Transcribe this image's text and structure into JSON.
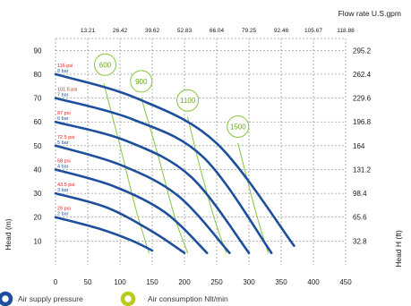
{
  "chart_data": {
    "type": "line",
    "title": "",
    "x_top_title": "Flow rate U.S.gpm",
    "y_left_title": "Head (m)",
    "y_right_title": "Head H (ft)",
    "x_ticks": [
      "0",
      "50",
      "100",
      "150",
      "200",
      "250",
      "300",
      "350",
      "400",
      "450"
    ],
    "x_top_ticks": [
      "13.21",
      "26.42",
      "39.62",
      "52.83",
      "66.04",
      "79.25",
      "92.46",
      "105.67",
      "118.88"
    ],
    "y_ticks": [
      "10",
      "20",
      "30",
      "40",
      "50",
      "60",
      "70",
      "80",
      "90"
    ],
    "y_right_ticks": [
      "32.8",
      "65.6",
      "98.4",
      "131.2",
      "164",
      "196.8",
      "229.6",
      "262.4",
      "295.2"
    ],
    "xlim": [
      0,
      450
    ],
    "ylim": [
      0,
      95
    ],
    "pressure_colors": {
      "curve": "#1e4f9c",
      "air": "#88c541",
      "psi": "#e0201b",
      "bar": "#2456a6"
    },
    "pressure_series": [
      {
        "psi": "29 psi",
        "bar": "2 bar",
        "points": [
          [
            0,
            20
          ],
          [
            70,
            15
          ],
          [
            120,
            10
          ],
          [
            150,
            6
          ]
        ]
      },
      {
        "psi": "43.5 psi",
        "bar": "3 bar",
        "points": [
          [
            0,
            30
          ],
          [
            80,
            24
          ],
          [
            150,
            14
          ],
          [
            200,
            5
          ]
        ]
      },
      {
        "psi": "58 psi",
        "bar": "4 bar",
        "points": [
          [
            0,
            40
          ],
          [
            90,
            33
          ],
          [
            170,
            22
          ],
          [
            235,
            5
          ]
        ]
      },
      {
        "psi": "72.5 psi",
        "bar": "5 bar",
        "points": [
          [
            0,
            50
          ],
          [
            100,
            42
          ],
          [
            190,
            29
          ],
          [
            270,
            5
          ]
        ]
      },
      {
        "psi": "87 psi",
        "bar": "6 bar",
        "points": [
          [
            0,
            60
          ],
          [
            110,
            52
          ],
          [
            210,
            37
          ],
          [
            300,
            5
          ]
        ]
      },
      {
        "psi": "101.5 psi",
        "bar": "7 bar",
        "points": [
          [
            0,
            70
          ],
          [
            120,
            61
          ],
          [
            230,
            45
          ],
          [
            335,
            5
          ]
        ]
      },
      {
        "psi": "116 psi",
        "bar": "8 bar",
        "points": [
          [
            0,
            80
          ],
          [
            125,
            70
          ],
          [
            250,
            51
          ],
          [
            370,
            8
          ]
        ]
      }
    ],
    "air_series": [
      {
        "label": "600",
        "bubble": [
          77,
          84
        ],
        "points": [
          [
            75,
            76
          ],
          [
            100,
            50
          ],
          [
            125,
            23
          ],
          [
            145,
            5
          ]
        ]
      },
      {
        "label": "900",
        "bubble": [
          133,
          77
        ],
        "points": [
          [
            133,
            70
          ],
          [
            160,
            45
          ],
          [
            185,
            20
          ],
          [
            205,
            5
          ]
        ]
      },
      {
        "label": "1100",
        "bubble": [
          205,
          69
        ],
        "points": [
          [
            205,
            62
          ],
          [
            225,
            40
          ],
          [
            248,
            18
          ],
          [
            265,
            5
          ]
        ]
      },
      {
        "label": "1500",
        "bubble": [
          283,
          58
        ],
        "points": [
          [
            283,
            51
          ],
          [
            300,
            33
          ],
          [
            315,
            18
          ],
          [
            330,
            5
          ]
        ]
      }
    ]
  },
  "legend": {
    "pressure_label": "Air supply pressure",
    "air_label": "Air consumption Nlt/min"
  }
}
